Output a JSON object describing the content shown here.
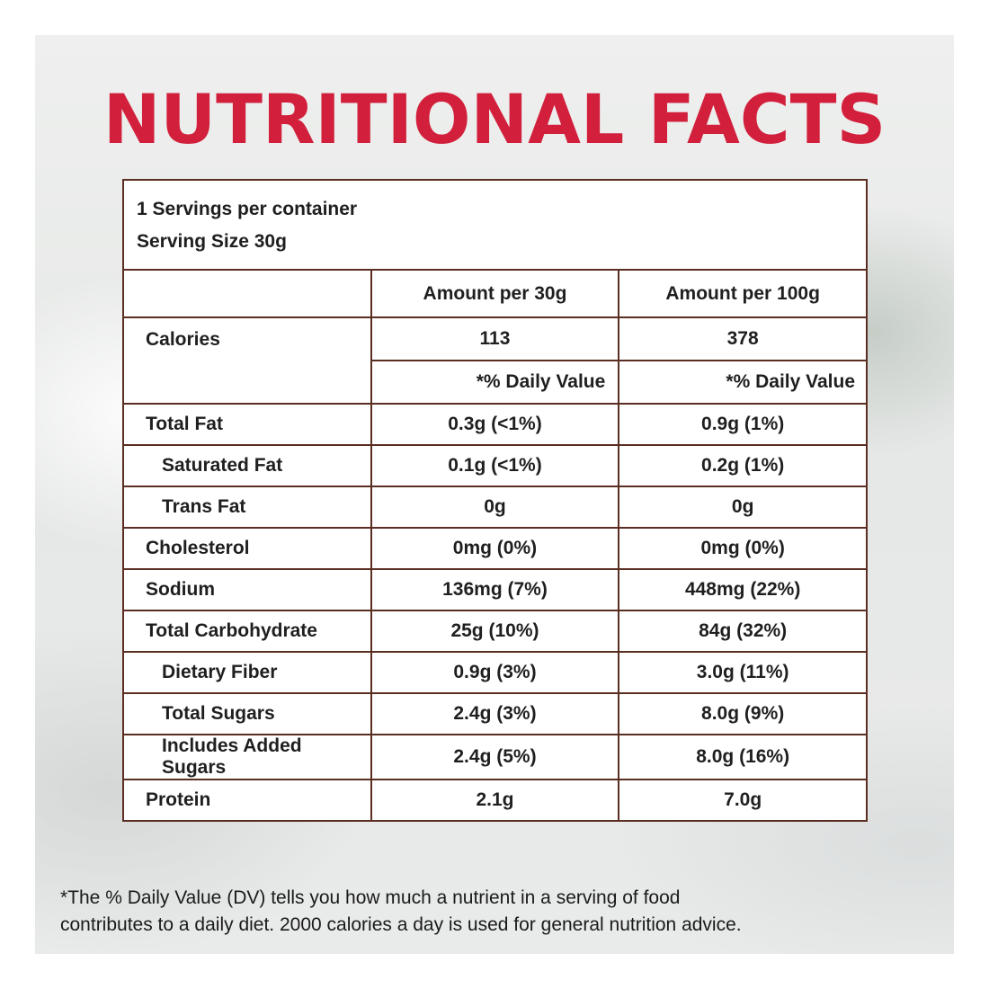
{
  "title": "NUTRITIONAL FACTS",
  "serving": {
    "per_container": "1 Servings per container",
    "size": "Serving Size 30g"
  },
  "columns": {
    "col1": "",
    "col2": "Amount per 30g",
    "col3": "Amount per 100g"
  },
  "calories": {
    "label": "Calories",
    "per30": "113",
    "per100": "378",
    "dv_label_30": "*% Daily Value",
    "dv_label_100": "*% Daily Value"
  },
  "nutrients": [
    {
      "label": "Total Fat",
      "per30": "0.3g (<1%)",
      "per100": "0.9g (1%)"
    },
    {
      "label": "Saturated Fat",
      "per30": "0.1g (<1%)",
      "per100": "0.2g (1%)"
    },
    {
      "label": "Trans Fat",
      "per30": "0g",
      "per100": "0g"
    },
    {
      "label": "Cholesterol",
      "per30": "0mg (0%)",
      "per100": "0mg (0%)"
    },
    {
      "label": "Sodium",
      "per30": "136mg (7%)",
      "per100": "448mg (22%)"
    },
    {
      "label": "Total Carbohydrate",
      "per30": "25g (10%)",
      "per100": "84g (32%)"
    },
    {
      "label": "Dietary Fiber",
      "per30": "0.9g (3%)",
      "per100": "3.0g (11%)"
    },
    {
      "label": "Total Sugars",
      "per30": "2.4g (3%)",
      "per100": "8.0g (9%)"
    },
    {
      "label": "Includes Added Sugars",
      "per30": "2.4g (5%)",
      "per100": "8.0g (16%)"
    },
    {
      "label": "Protein",
      "per30": "2.1g",
      "per100": "7.0g"
    }
  ],
  "footnote": {
    "line1": "*The % Daily Value (DV) tells you how much a nutrient in a serving of food",
    "line2": "contributes to a daily diet. 2000 calories a day is used for general nutrition advice."
  },
  "colors": {
    "title": "#d21f3c",
    "border": "#5a2e22"
  }
}
